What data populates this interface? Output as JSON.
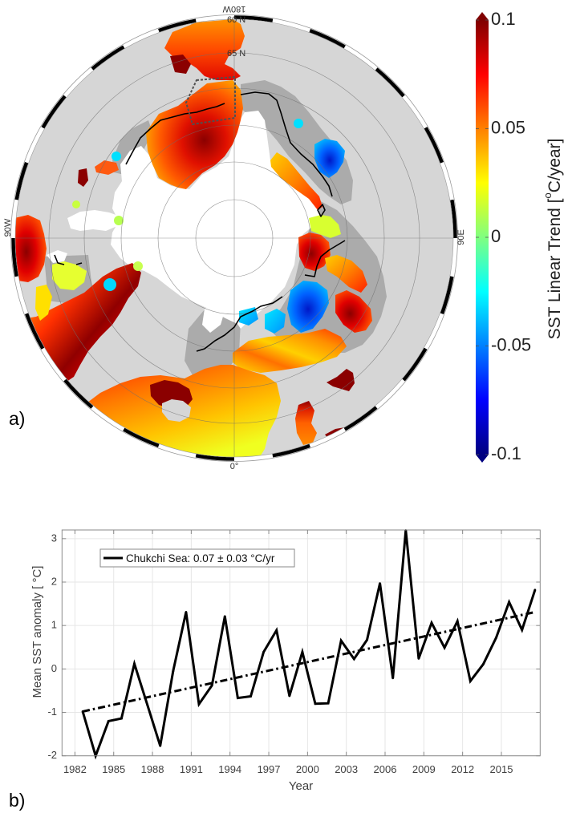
{
  "figure": {
    "panel_a_label": "a)",
    "panel_b_label": "b)"
  },
  "chart_data": [
    {
      "type": "heatmap",
      "title": "",
      "grid": true,
      "meridian_labels": {
        "top": "180W",
        "left": "90W",
        "right": "90E",
        "bottom": "0°"
      },
      "latitude_labels": [
        "60 N",
        "65 N"
      ],
      "colorbar": {
        "label_prefix": "SST Linear Trend [",
        "label_sup": "o",
        "label_suffix": "C/year]",
        "range": [
          -0.1,
          0.1
        ],
        "ticks": [
          0.1,
          0.05,
          0,
          -0.05,
          -0.1
        ],
        "tick_labels": [
          "0.1",
          "0.05",
          "0",
          "-0.05",
          "-0.1"
        ],
        "colormap_stops": [
          "#800000",
          "#ff0000",
          "#ff8000",
          "#ffff00",
          "#80ff80",
          "#00ffff",
          "#0080ff",
          "#0000ff",
          "#000080"
        ]
      }
    },
    {
      "type": "line",
      "title": "",
      "xlabel": "Year",
      "ylabel": "Mean SST anomaly [ °C]",
      "xlim": [
        1981,
        2018
      ],
      "ylim": [
        -2,
        3.2
      ],
      "grid": true,
      "xticks": [
        1982,
        1985,
        1988,
        1991,
        1994,
        1997,
        2000,
        2003,
        2006,
        2009,
        2012,
        2015
      ],
      "xtick_labels": [
        "1982",
        "1985",
        "1988",
        "1991",
        "1994",
        "1997",
        "2000",
        "2003",
        "2006",
        "2009",
        "2012",
        "2015"
      ],
      "yticks": [
        -2,
        -1,
        0,
        1,
        2,
        3
      ],
      "ytick_labels": [
        "-2",
        "-1",
        "0",
        "1",
        "2",
        "3"
      ],
      "legend": {
        "location": "top-left",
        "entries": [
          "Chukchi Sea: 0.07 ± 0.03 °C/yr"
        ]
      },
      "series": [
        {
          "name": "Chukchi Sea: 0.07 ± 0.03 °C/yr",
          "x": [
            1982.6,
            1983.6,
            1984.6,
            1985.6,
            1986.6,
            1987.6,
            1988.6,
            1989.6,
            1990.6,
            1991.6,
            1992.6,
            1993.6,
            1994.6,
            1995.6,
            1996.6,
            1997.6,
            1998.6,
            1999.6,
            2000.6,
            2001.6,
            2002.6,
            2003.6,
            2004.6,
            2005.6,
            2006.6,
            2007.6,
            2008.6,
            2009.6,
            2010.6,
            2011.6,
            2012.6,
            2013.6,
            2014.6,
            2015.6,
            2016.6,
            2017.6
          ],
          "y": [
            -0.98,
            -2.0,
            -1.2,
            -1.14,
            0.12,
            -0.82,
            -1.77,
            -0.05,
            1.31,
            -0.81,
            -0.38,
            1.21,
            -0.67,
            -0.63,
            0.39,
            0.89,
            -0.62,
            0.39,
            -0.8,
            -0.79,
            0.65,
            0.23,
            0.67,
            1.97,
            -0.21,
            3.19,
            0.24,
            1.06,
            0.49,
            1.1,
            -0.28,
            0.11,
            0.72,
            1.54,
            0.9,
            1.82
          ]
        }
      ],
      "trend": {
        "x": [
          1982.6,
          2017.6
        ],
        "y": [
          -0.98,
          1.31
        ],
        "slope_per_year": 0.07,
        "slope_uncertainty": 0.03
      }
    }
  ]
}
